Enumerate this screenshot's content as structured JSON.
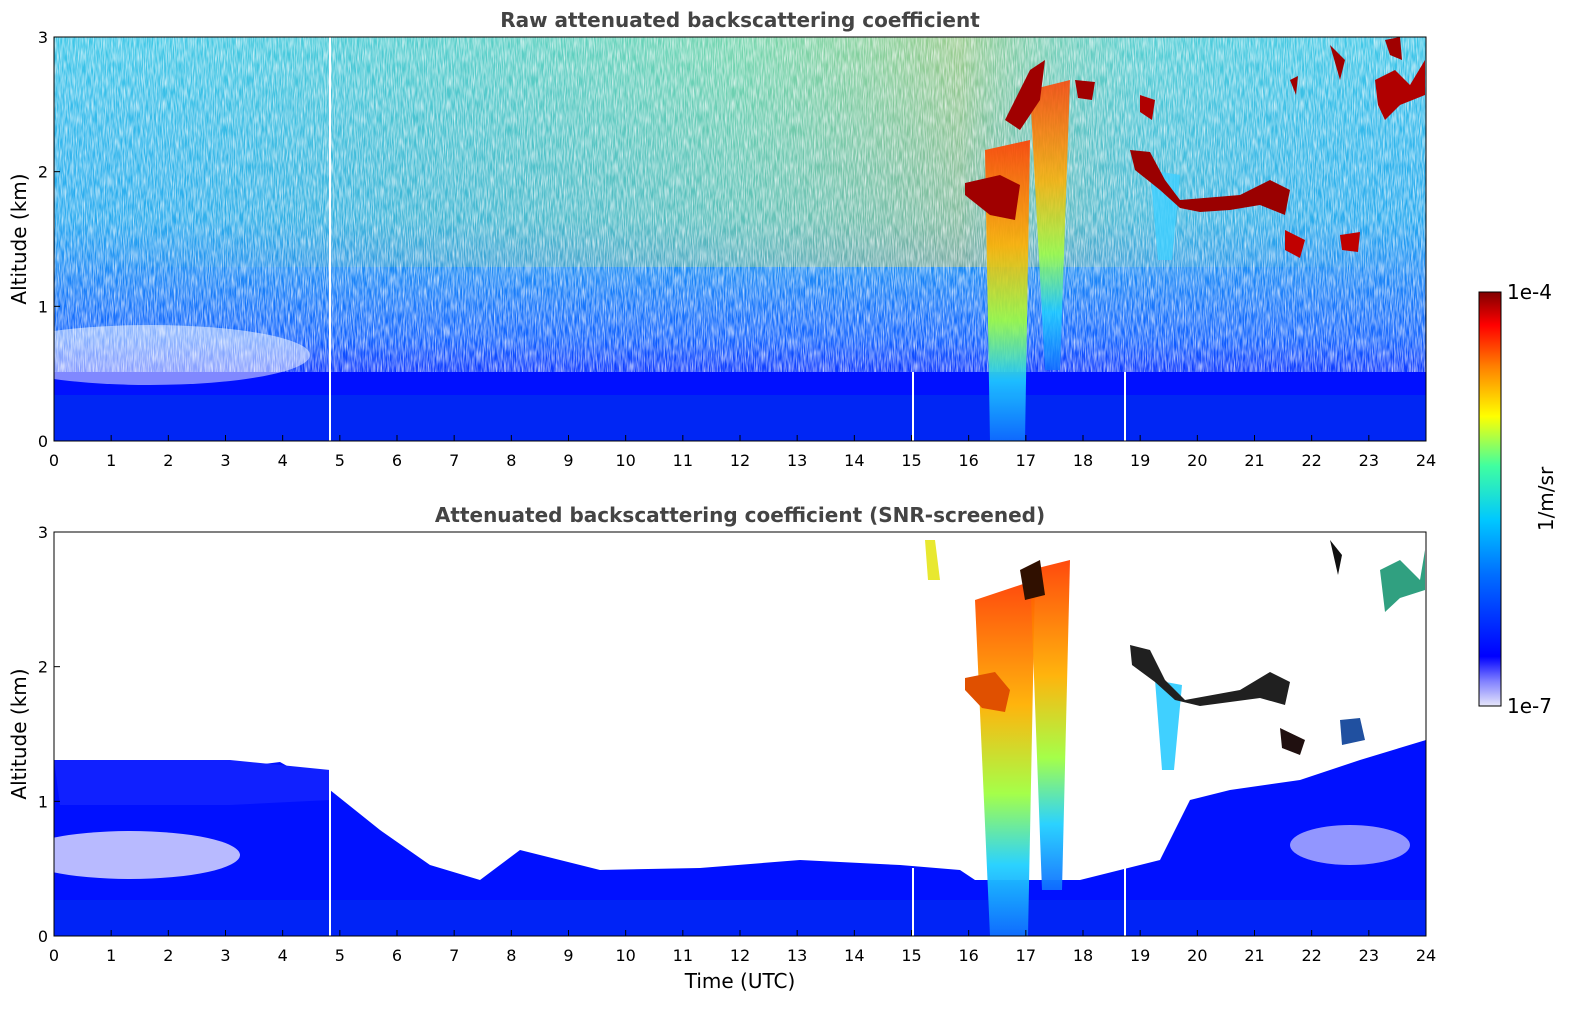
{
  "chart_data": [
    {
      "type": "heatmap",
      "title": "Raw attenuated backscattering coefficient",
      "xlabel": "",
      "ylabel": "Altitude (km)",
      "xlim": [
        0,
        24
      ],
      "ylim": [
        0,
        3
      ],
      "xticks": [
        "0",
        "1",
        "2",
        "3",
        "4",
        "5",
        "6",
        "7",
        "8",
        "9",
        "10",
        "11",
        "12",
        "13",
        "14",
        "15",
        "16",
        "17",
        "18",
        "19",
        "20",
        "21",
        "22",
        "23",
        "24"
      ],
      "yticks": [
        "0",
        "1",
        "2",
        "3"
      ],
      "features": [
        {
          "label": "boundary layer",
          "x": [
            0,
            24
          ],
          "y": [
            0,
            0.35
          ],
          "level": 0.2
        },
        {
          "label": "precipitation shaft",
          "x": [
            16.4,
            16.9
          ],
          "y": [
            0,
            2.2
          ],
          "level": 0.6
        },
        {
          "label": "precipitation shaft",
          "x": [
            17.3,
            17.6
          ],
          "y": [
            0.5,
            2.6
          ],
          "level": 0.6
        },
        {
          "label": "cloud layer",
          "x": [
            15.9,
            16.6
          ],
          "y": [
            1.7,
            2.0
          ],
          "level": 0.95
        },
        {
          "label": "cloud layer",
          "x": [
            19.2,
            21.0
          ],
          "y": [
            1.7,
            2.1
          ],
          "level": 0.95
        },
        {
          "label": "cloud layer",
          "x": [
            21.0,
            21.9
          ],
          "y": [
            1.6,
            1.9
          ],
          "level": 0.95
        },
        {
          "label": "cloud layer",
          "x": [
            22.5,
            24.0
          ],
          "y": [
            2.3,
            2.9
          ],
          "level": 0.95
        }
      ]
    },
    {
      "type": "heatmap",
      "title": "Attenuated backscattering coefficient (SNR-screened)",
      "xlabel": "Time (UTC)",
      "ylabel": "Altitude (km)",
      "xlim": [
        0,
        24
      ],
      "ylim": [
        0,
        3
      ],
      "xticks": [
        "0",
        "1",
        "2",
        "3",
        "4",
        "5",
        "6",
        "7",
        "8",
        "9",
        "10",
        "11",
        "12",
        "13",
        "14",
        "15",
        "16",
        "17",
        "18",
        "19",
        "20",
        "21",
        "22",
        "23",
        "24"
      ],
      "yticks": [
        "0",
        "1",
        "2",
        "3"
      ],
      "features": [
        {
          "label": "boundary layer",
          "x": [
            0,
            24
          ],
          "y": [
            0,
            0.45
          ],
          "level": 0.2
        },
        {
          "label": "residual layer",
          "x": [
            0,
            5
          ],
          "y": [
            0.45,
            1.2
          ],
          "level": 0.15
        },
        {
          "label": "residual layer",
          "x": [
            19.8,
            24
          ],
          "y": [
            0.45,
            1.3
          ],
          "level": 0.15
        },
        {
          "label": "precipitation shaft",
          "x": [
            16.3,
            16.9
          ],
          "y": [
            0,
            2.4
          ],
          "level": 0.6
        },
        {
          "label": "precipitation shaft",
          "x": [
            17.3,
            17.7
          ],
          "y": [
            0.5,
            2.7
          ],
          "level": 0.65
        },
        {
          "label": "cloud layer",
          "x": [
            19.0,
            21.5
          ],
          "y": [
            1.7,
            2.1
          ],
          "level": 0.97
        }
      ]
    }
  ],
  "colorbar": {
    "label": "1/m/sr",
    "max_label": "1e-4",
    "min_label": "1e-7",
    "colors": [
      "#e6e6fa",
      "#0000ff",
      "#00bfff",
      "#00ff7f",
      "#ffff00",
      "#ff8000",
      "#ff0000",
      "#800000"
    ]
  }
}
